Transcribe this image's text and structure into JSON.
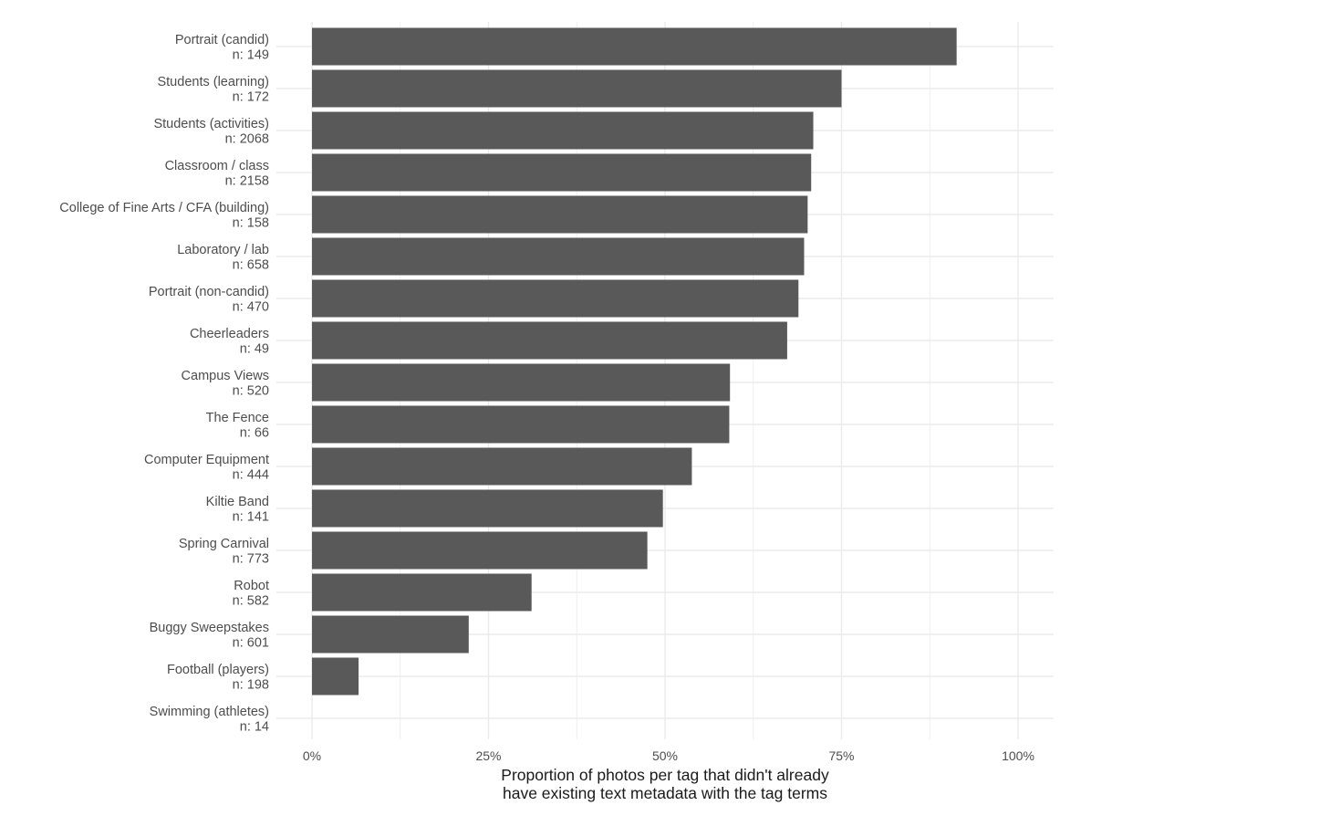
{
  "chart_data": {
    "type": "bar",
    "orientation": "horizontal",
    "title": "",
    "ylabel": "",
    "xlabel_lines": [
      "Proportion of photos per tag that didn't already",
      "have existing text metadata with the tag terms"
    ],
    "xlim": [
      0,
      1
    ],
    "x_ticks": [
      0,
      0.25,
      0.5,
      0.75,
      1
    ],
    "x_tick_labels": [
      "0%",
      "25%",
      "50%",
      "75%",
      "100%"
    ],
    "grid": true,
    "legend": "none",
    "bar_color": "#595959",
    "grid_color": "#ebebeb",
    "categories": [
      {
        "label": "Portrait (candid)",
        "n_label": "n: 149",
        "value": 0.913
      },
      {
        "label": "Students (learning)",
        "n_label": "n: 172",
        "value": 0.75
      },
      {
        "label": "Students (activities)",
        "n_label": "n: 2068",
        "value": 0.71
      },
      {
        "label": "Classroom / class",
        "n_label": "n: 2158",
        "value": 0.707
      },
      {
        "label": "College of Fine Arts / CFA (building)",
        "n_label": "n: 158",
        "value": 0.702
      },
      {
        "label": "Laboratory / lab",
        "n_label": "n: 658",
        "value": 0.697
      },
      {
        "label": "Portrait (non-candid)",
        "n_label": "n: 470",
        "value": 0.689
      },
      {
        "label": "Cheerleaders",
        "n_label": "n: 49",
        "value": 0.673
      },
      {
        "label": "Campus Views",
        "n_label": "n: 520",
        "value": 0.592
      },
      {
        "label": "The Fence",
        "n_label": "n: 66",
        "value": 0.591
      },
      {
        "label": "Computer Equipment",
        "n_label": "n: 444",
        "value": 0.538
      },
      {
        "label": "Kiltie Band",
        "n_label": "n: 141",
        "value": 0.497
      },
      {
        "label": "Spring Carnival",
        "n_label": "n: 773",
        "value": 0.475
      },
      {
        "label": "Robot",
        "n_label": "n: 582",
        "value": 0.311
      },
      {
        "label": "Buggy Sweepstakes",
        "n_label": "n: 601",
        "value": 0.222
      },
      {
        "label": "Football (players)",
        "n_label": "n: 198",
        "value": 0.066
      },
      {
        "label": "Swimming (athletes)",
        "n_label": "n: 14",
        "value": 0
      }
    ]
  }
}
